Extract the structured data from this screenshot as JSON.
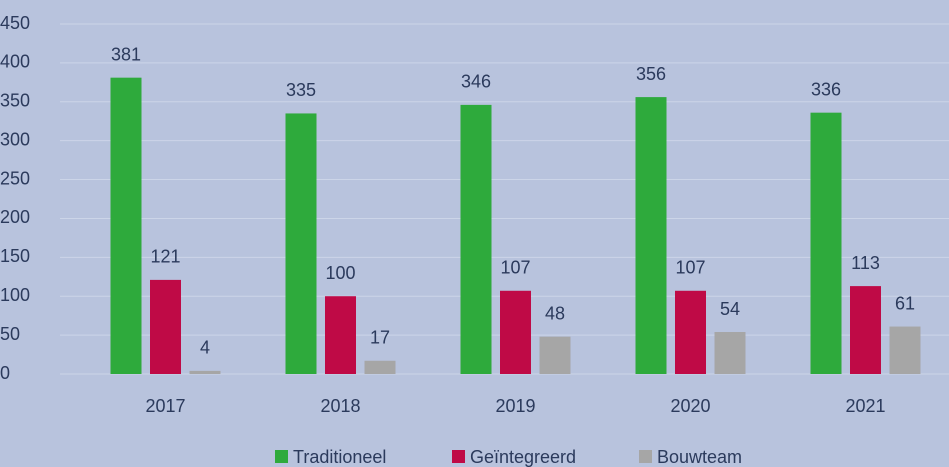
{
  "chart_data": {
    "type": "bar",
    "categories": [
      "2017",
      "2018",
      "2019",
      "2020",
      "2021"
    ],
    "series": [
      {
        "name": "Traditioneel",
        "color": "#2eaa3c",
        "values": [
          381,
          335,
          346,
          356,
          336
        ]
      },
      {
        "name": "Geïntegreerd",
        "color": "#bf0a46",
        "values": [
          121,
          100,
          107,
          107,
          113
        ]
      },
      {
        "name": "Bouwteam",
        "color": "#a6a6a6",
        "values": [
          4,
          17,
          48,
          54,
          61
        ]
      }
    ],
    "ylim": [
      0,
      450
    ],
    "yticks": [
      0,
      50,
      100,
      150,
      200,
      250,
      300,
      350,
      400,
      450
    ],
    "grid": true,
    "legend": "bottom"
  }
}
